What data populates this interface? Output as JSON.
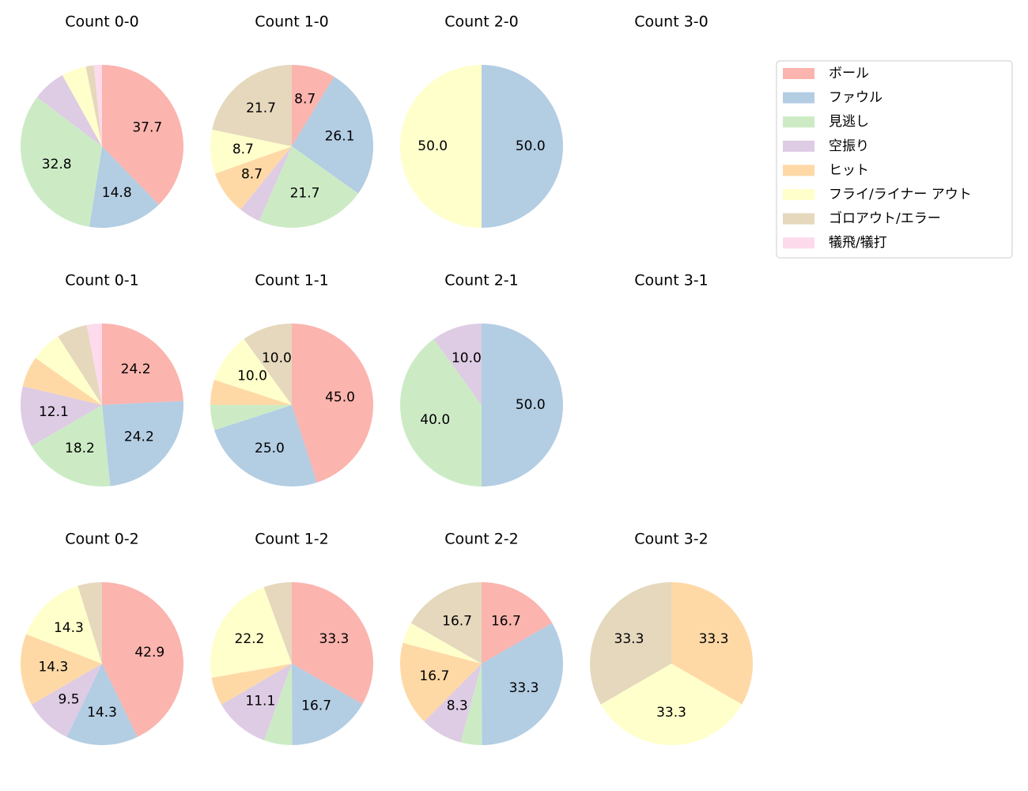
{
  "chart_data": [
    {
      "type": "pie",
      "title": "Count 0-0",
      "values": [
        37.7,
        14.8,
        32.8,
        6.6,
        0,
        4.9,
        1.6,
        1.6
      ],
      "value_labels": [
        "37.7",
        "14.8",
        "32.8",
        null,
        null,
        null,
        null,
        null
      ]
    },
    {
      "type": "pie",
      "title": "Count 1-0",
      "values": [
        8.7,
        26.1,
        21.7,
        4.3,
        8.7,
        8.7,
        21.7,
        0
      ],
      "value_labels": [
        "8.7",
        "26.1",
        "21.7",
        null,
        "8.7",
        "8.7",
        "21.7",
        null
      ]
    },
    {
      "type": "pie",
      "title": "Count 2-0",
      "values": [
        0,
        50,
        0,
        0,
        0,
        50,
        0,
        0
      ],
      "value_labels": [
        null,
        "50.0",
        null,
        null,
        null,
        "50.0",
        null,
        null
      ]
    },
    {
      "type": "pie",
      "title": "Count 3-0"
    },
    {
      "type": "pie",
      "title": "Count 0-1",
      "values": [
        24.2,
        24.2,
        18.2,
        12.1,
        6.1,
        6.1,
        6.1,
        3.0
      ],
      "value_labels": [
        "24.2",
        "24.2",
        "18.2",
        "12.1",
        null,
        null,
        null,
        null
      ]
    },
    {
      "type": "pie",
      "title": "Count 1-1",
      "values": [
        45,
        25,
        5,
        0,
        5,
        10,
        10,
        0
      ],
      "value_labels": [
        "45.0",
        "25.0",
        null,
        null,
        null,
        "10.0",
        "10.0",
        null
      ]
    },
    {
      "type": "pie",
      "title": "Count 2-1",
      "values": [
        0,
        50,
        40,
        10,
        0,
        0,
        0,
        0
      ],
      "value_labels": [
        null,
        "50.0",
        "40.0",
        "10.0",
        null,
        null,
        null,
        null
      ]
    },
    {
      "type": "pie",
      "title": "Count 3-1"
    },
    {
      "type": "pie",
      "title": "Count 0-2",
      "values": [
        42.9,
        14.3,
        0,
        9.5,
        14.3,
        14.3,
        4.8,
        0
      ],
      "value_labels": [
        "42.9",
        "14.3",
        null,
        "9.5",
        "14.3",
        "14.3",
        null,
        null
      ]
    },
    {
      "type": "pie",
      "title": "Count 1-2",
      "values": [
        33.3,
        16.7,
        5.6,
        11.1,
        5.6,
        22.2,
        5.6,
        0
      ],
      "value_labels": [
        "33.3",
        "16.7",
        null,
        "11.1",
        null,
        "22.2",
        null,
        null
      ]
    },
    {
      "type": "pie",
      "title": "Count 2-2",
      "values": [
        16.7,
        33.3,
        4.2,
        8.3,
        16.7,
        4.2,
        16.7,
        0
      ],
      "value_labels": [
        "16.7",
        "33.3",
        null,
        "8.3",
        "16.7",
        null,
        "16.7",
        null
      ]
    },
    {
      "type": "pie",
      "title": "Count 3-2",
      "values": [
        0,
        0,
        0,
        0,
        33.3,
        33.3,
        33.3,
        0
      ],
      "value_labels": [
        null,
        null,
        null,
        null,
        "33.3",
        "33.3",
        "33.3",
        null
      ]
    }
  ],
  "legend": {
    "labels": [
      "ボール",
      "ファウル",
      "見逃し",
      "空振り",
      "ヒット",
      "フライ/ライナー アウト",
      "ゴロアウト/エラー",
      "犠飛/犠打"
    ],
    "colors": [
      "#fbb4ae",
      "#b3cde3",
      "#ccebc5",
      "#decbe4",
      "#fed9a6",
      "#ffffcc",
      "#e5d8bd",
      "#fddaec"
    ],
    "position": "upper right"
  }
}
